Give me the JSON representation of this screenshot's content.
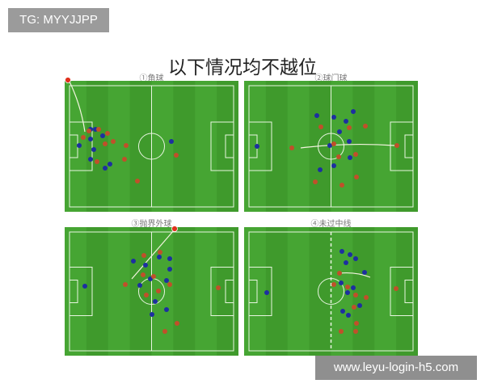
{
  "watermark_top": "TG: MYYJJPP",
  "watermark_bottom": "www.leyu-login-h5.com",
  "title": "以下情况均不越位",
  "panels": [
    {
      "caption": "①角球"
    },
    {
      "caption": "②球门球"
    },
    {
      "caption": "③抛界外球"
    },
    {
      "caption": "④未过中线"
    }
  ],
  "colors": {
    "pitch": "#3f9a2c",
    "pitch_stripe": "#46a533",
    "team_blue": "#1d2fa0",
    "team_red": "#c0502a",
    "ball": "#e0301c"
  }
}
